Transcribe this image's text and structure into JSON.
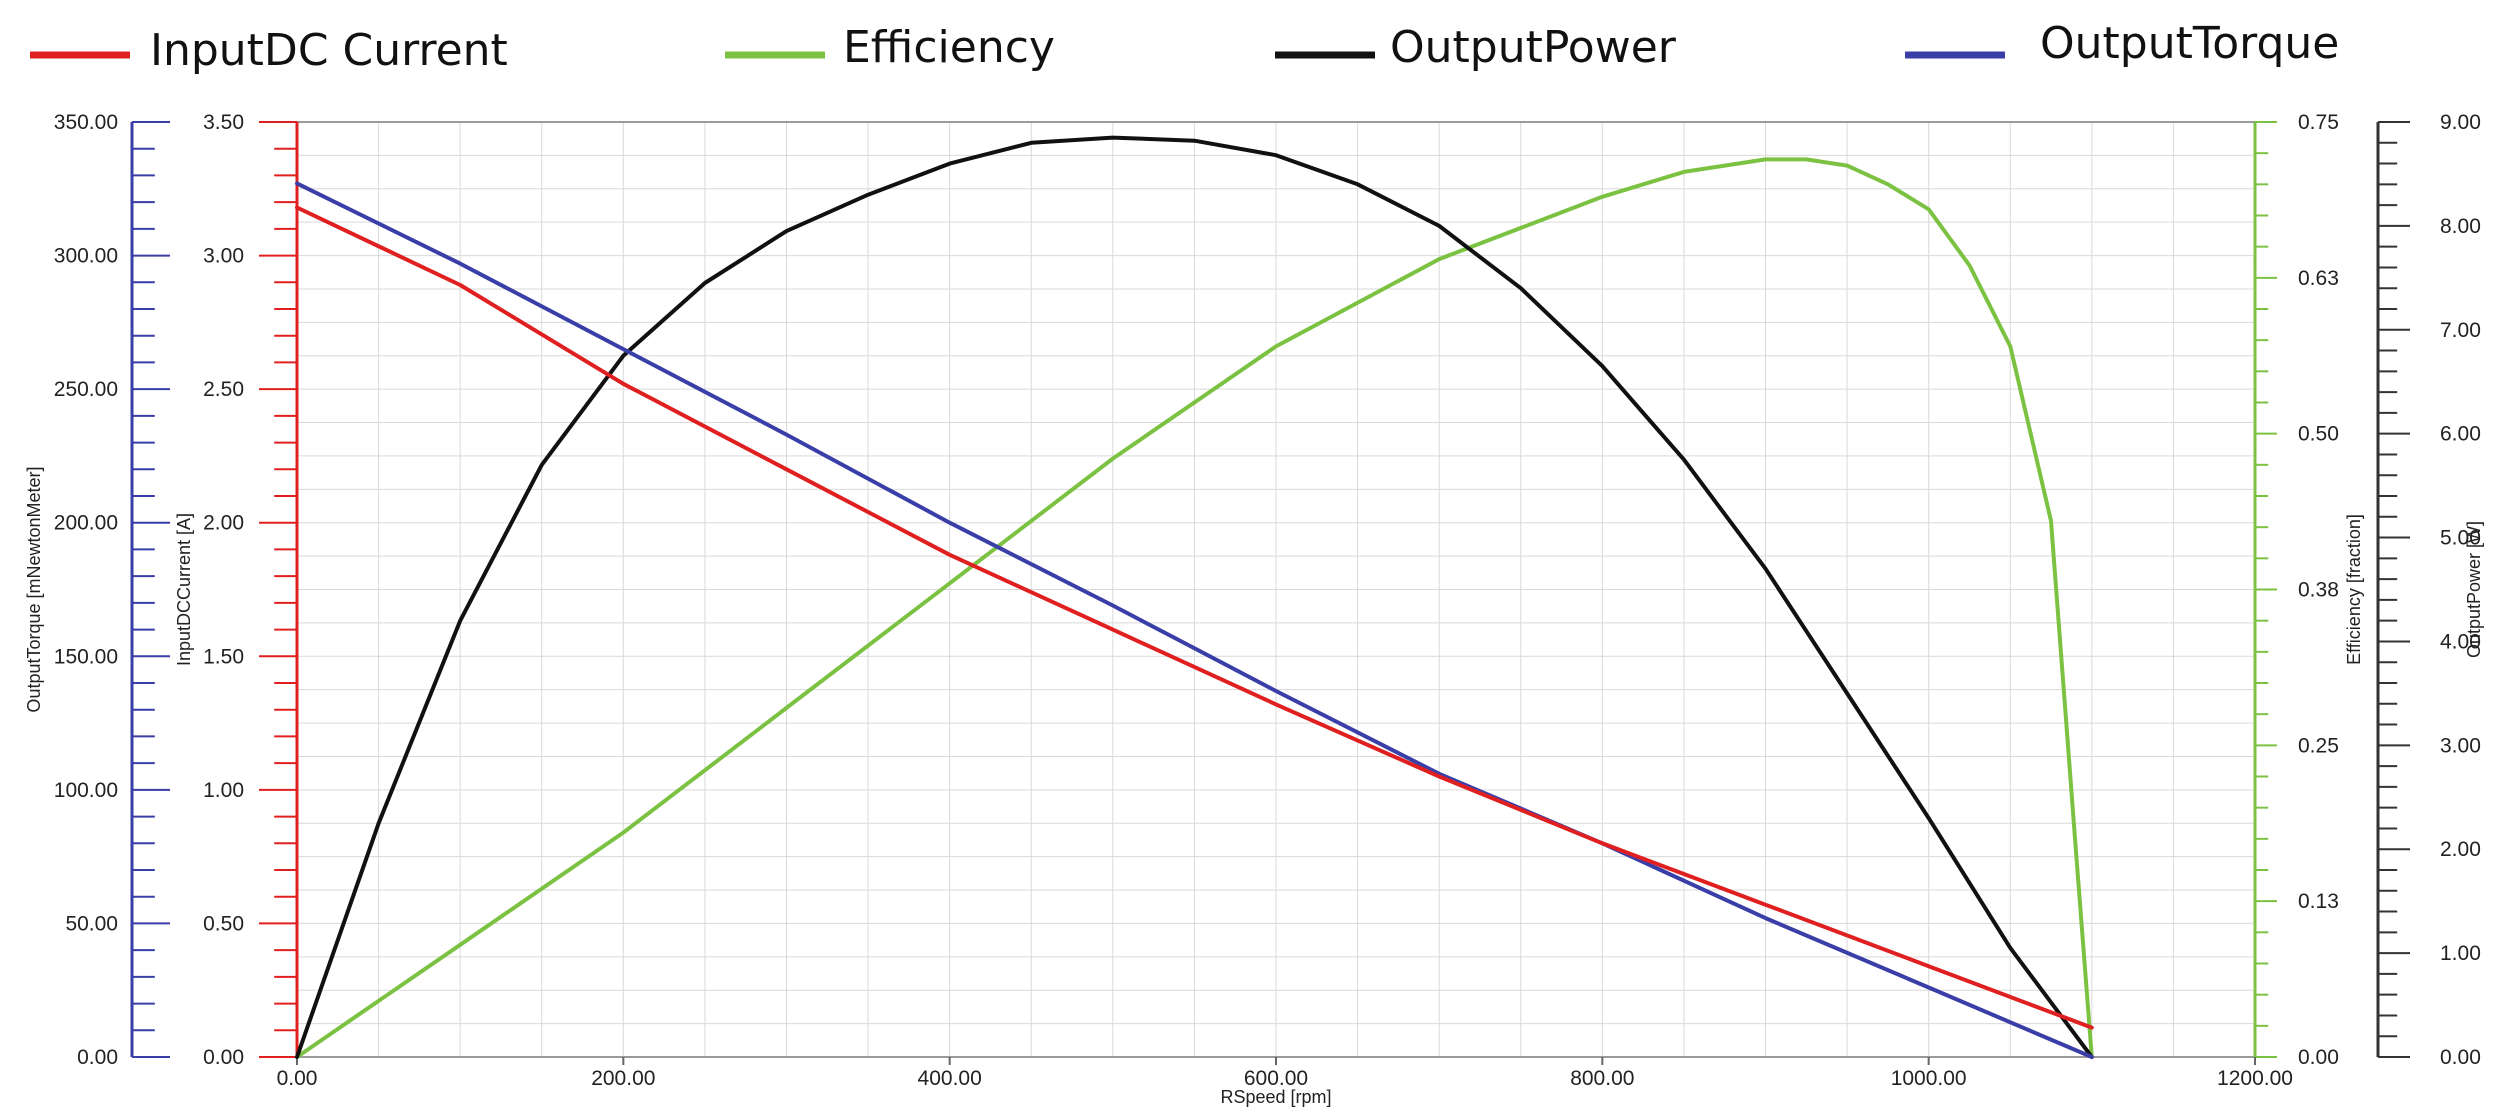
{
  "chart_data": {
    "type": "line",
    "legend": [
      "InputDC Current",
      "Efficiency",
      "OutputPower",
      "OutputTorque"
    ],
    "colors": {
      "InputDC Current": "#e02020",
      "Efficiency": "#7cc242",
      "OutputPower": "#111111",
      "OutputTorque": "#3a3fa8",
      "grid": "#d9d9d9",
      "frame": "#9a9a9a"
    },
    "xlabel": "RSpeed [rpm]",
    "xlim": [
      0,
      1200
    ],
    "x_ticks": [
      "0.00",
      "200.00",
      "400.00",
      "600.00",
      "800.00",
      "1000.00",
      "1200.00"
    ],
    "axes": {
      "torque": {
        "label": "OutputTorque [mNewtonMeter]",
        "range": [
          0,
          350
        ],
        "ticks": [
          "0.00",
          "50.00",
          "100.00",
          "150.00",
          "200.00",
          "250.00",
          "300.00",
          "350.00"
        ]
      },
      "current": {
        "label": "InputDCCurrent [A]",
        "range": [
          0,
          3.5
        ],
        "ticks": [
          "0.00",
          "0.50",
          "1.00",
          "1.50",
          "2.00",
          "2.50",
          "3.00",
          "3.50"
        ]
      },
      "efficiency": {
        "label": "Efficiency [fraction]",
        "range": [
          0,
          0.75
        ],
        "ticks": [
          "0.00",
          "0.13",
          "0.25",
          "0.38",
          "0.50",
          "0.63",
          "0.75"
        ]
      },
      "power": {
        "label": "OutputPower [W]",
        "range": [
          0,
          9
        ],
        "ticks": [
          "0.00",
          "1.00",
          "2.00",
          "3.00",
          "4.00",
          "5.00",
          "6.00",
          "7.00",
          "8.00",
          "9.00"
        ]
      }
    },
    "series": [
      {
        "name": "InputDC Current",
        "axis": "current",
        "x": [
          0,
          100,
          200,
          300,
          400,
          500,
          600,
          700,
          800,
          900,
          1000,
          1100
        ],
        "values": [
          3.18,
          2.89,
          2.52,
          2.2,
          1.88,
          1.6,
          1.32,
          1.05,
          0.8,
          0.57,
          0.34,
          0.11
        ]
      },
      {
        "name": "Efficiency",
        "axis": "efficiency",
        "x": [
          0,
          100,
          200,
          300,
          400,
          500,
          600,
          700,
          800,
          850,
          900,
          925,
          950,
          975,
          1000,
          1025,
          1050,
          1075,
          1090,
          1100
        ],
        "values": [
          0,
          0.09,
          0.18,
          0.28,
          0.38,
          0.48,
          0.57,
          0.64,
          0.69,
          0.71,
          0.72,
          0.72,
          0.715,
          0.7,
          0.68,
          0.635,
          0.57,
          0.43,
          0.17,
          0
        ]
      },
      {
        "name": "OutputPower",
        "axis": "power",
        "x": [
          0,
          50,
          100,
          150,
          200,
          250,
          300,
          350,
          400,
          450,
          500,
          550,
          600,
          650,
          700,
          750,
          800,
          850,
          900,
          950,
          1000,
          1050,
          1100
        ],
        "values": [
          0,
          2.25,
          4.2,
          5.7,
          6.75,
          7.45,
          7.95,
          8.3,
          8.6,
          8.8,
          8.85,
          8.82,
          8.68,
          8.4,
          8.0,
          7.4,
          6.65,
          5.75,
          4.7,
          3.5,
          2.3,
          1.05,
          0
        ]
      },
      {
        "name": "OutputTorque",
        "axis": "torque",
        "x": [
          0,
          100,
          200,
          300,
          400,
          500,
          600,
          700,
          800,
          900,
          1000,
          1100
        ],
        "values": [
          327,
          297,
          265,
          233,
          200,
          169,
          137,
          106,
          80,
          52,
          26,
          0
        ]
      }
    ]
  }
}
